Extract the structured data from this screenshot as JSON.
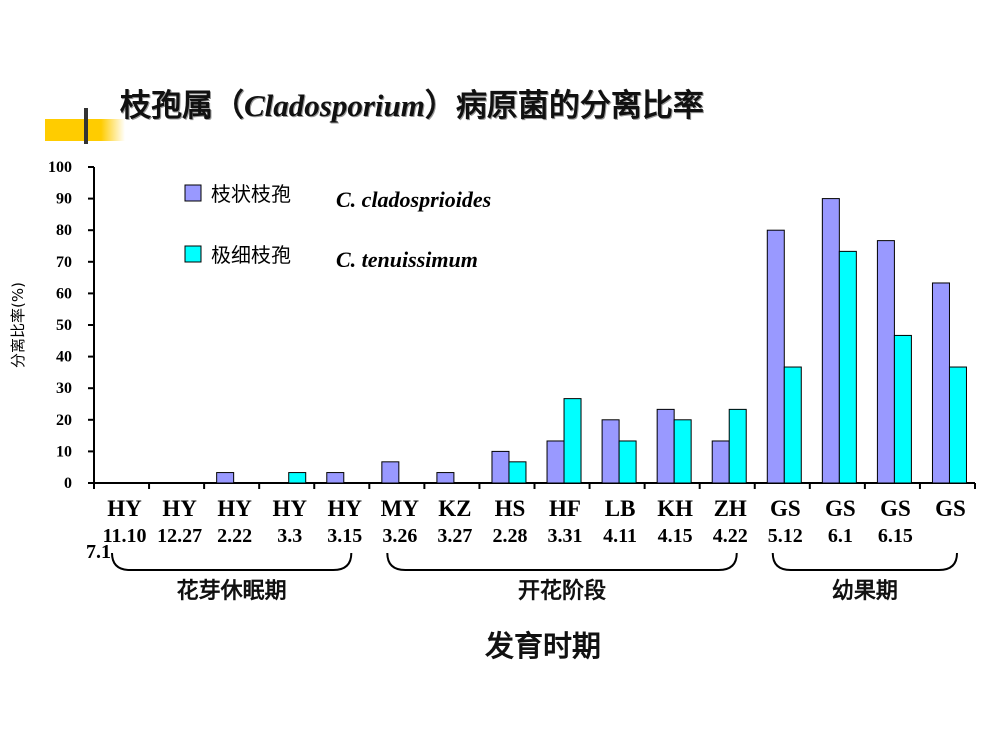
{
  "title": {
    "prefix": "枝孢属（",
    "latin": "Cladosporium",
    "suffix": "）病原菌的分离比率"
  },
  "chart_data": {
    "type": "bar",
    "title": "枝孢属（Cladosporium）病原菌的分离比率",
    "ylabel": "分离比率(%)",
    "xlabel": "发育时期",
    "ylim": [
      0,
      100
    ],
    "yticks": [
      0,
      10,
      20,
      30,
      40,
      50,
      60,
      70,
      80,
      90,
      100
    ],
    "legend_position": "top-left",
    "categories": [
      "HY",
      "HY",
      "HY",
      "HY",
      "HY",
      "MY",
      "KZ",
      "HS",
      "HF",
      "LB",
      "KH",
      "ZH",
      "GS",
      "GS",
      "GS",
      "GS"
    ],
    "dates": [
      "11.10",
      "12.27",
      "2.22",
      "3.3",
      "3.15",
      "3.26",
      "3.27",
      "2.28",
      "3.31",
      "4.11",
      "4.15",
      "4.22",
      "5.12",
      "6.1",
      "6.15",
      "7.1"
    ],
    "series": [
      {
        "name_cn": "枝状枝孢",
        "name": "C. cladosprioides",
        "color": "#9999ff",
        "values": [
          0,
          0,
          3.3,
          0,
          3.3,
          6.7,
          3.3,
          10,
          13.3,
          20,
          23.3,
          13.3,
          80,
          90,
          76.7,
          63.3
        ]
      },
      {
        "name_cn": "极细枝孢",
        "name": "C. tenuissimum",
        "color": "#00ffff",
        "values": [
          0,
          0,
          0,
          3.3,
          0,
          0,
          0,
          6.7,
          26.7,
          13.3,
          20,
          23.3,
          36.7,
          73.3,
          46.7,
          36.7
        ]
      }
    ],
    "groups": [
      {
        "label": "花芽休眠期",
        "from": 0,
        "to": 4
      },
      {
        "label": "开花阶段",
        "from": 5,
        "to": 11
      },
      {
        "label": "幼果期",
        "from": 12,
        "to": 15
      }
    ]
  }
}
